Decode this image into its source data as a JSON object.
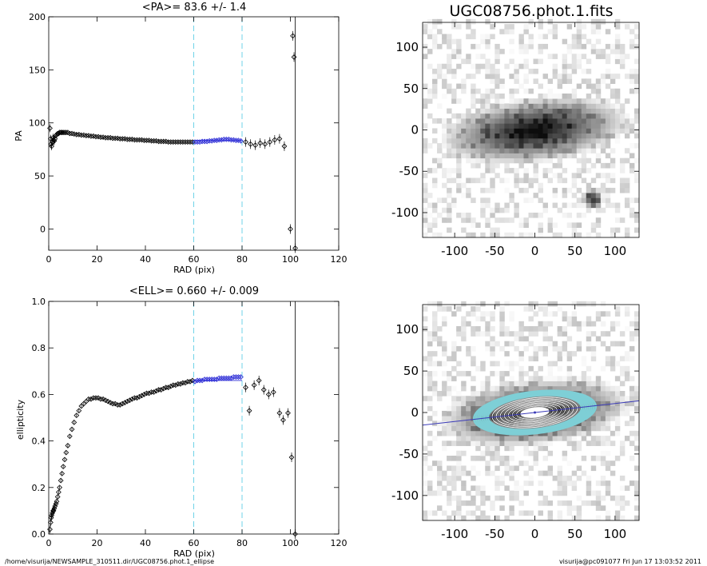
{
  "footer": {
    "path": "/home/visurija/NEWSAMPLE_310511.dir/UGC08756.phot.1_ellipse",
    "user_time": "visurija@pc091077  Fri Jun 17 13:03:52 2011"
  },
  "colors": {
    "data_marker": "#000000",
    "fit_range_marker": "#2b2bd6",
    "guide_lines": "#6fd3e8",
    "ellipse_outer": "#7ecfd6",
    "ellipse_inner": "#ffffff",
    "major_axis_line": "#3a3ab8"
  },
  "chart_data": [
    {
      "type": "scatter",
      "panel": "pa",
      "title": "<PA>=  83.6 +/-   1.4",
      "xlabel": "RAD (pix)",
      "ylabel": "PA",
      "xlim": [
        0,
        120
      ],
      "ylim": [
        -20,
        200
      ],
      "xticks": [
        "0",
        "20",
        "40",
        "60",
        "80",
        "100",
        "120"
      ],
      "yticks": [
        "0",
        "50",
        "100",
        "150",
        "200"
      ],
      "guide_lines_x": [
        60,
        80
      ],
      "vertical_line_x": 102,
      "fit_range": [
        60,
        80
      ],
      "fit_mean": 83.6,
      "series": [
        {
          "x": [
            0.5,
            0.8,
            1.0,
            1.2,
            1.5,
            1.8,
            2.0,
            2.3,
            2.6,
            3.0,
            3.3,
            3.7,
            4.1,
            4.5,
            5.0,
            5.5,
            6.0,
            6.6,
            7.2,
            7.9,
            8.7,
            9.6,
            10.5,
            11.5,
            12.5,
            13.5,
            14.5,
            15.5,
            16.5,
            17.5,
            18.5,
            19.5,
            20.5,
            21.5,
            22.5,
            23.5,
            24.5,
            25.5,
            26.5,
            27.5,
            28.5,
            29.5,
            30.5,
            31.5,
            32.5,
            33.5,
            34.5,
            35.5,
            36.5,
            37.5,
            38.5,
            39.5,
            40.5,
            41.5,
            42.5,
            43.5,
            44.5,
            45.5,
            46.5,
            47.5,
            48.5,
            49.5,
            50.5,
            51.5,
            52.5,
            53.5,
            54.5,
            55.5,
            56.5,
            57.5,
            58.5,
            59.5,
            60.5,
            61.5,
            62.5,
            63.5,
            64.5,
            65.5,
            66.5,
            67.5,
            68.5,
            69.5,
            70.5,
            71.5,
            72.5,
            73.5,
            74.5,
            75.5,
            76.5,
            77.5,
            78.5,
            79.5,
            81.5,
            83.5,
            85.5,
            87.5,
            89.5,
            91.5,
            93.5,
            95.5,
            97.5,
            100.0,
            101.0,
            101.5,
            102.0
          ],
          "y": [
            95,
            85,
            80,
            78,
            82,
            86,
            84,
            83,
            85,
            88,
            89,
            90,
            90,
            91,
            91,
            91,
            91,
            91,
            91,
            91,
            90,
            90,
            89.5,
            89,
            89,
            88.5,
            88.5,
            88,
            88,
            87.5,
            87.5,
            87,
            87,
            86.5,
            86.5,
            86,
            86,
            86,
            85.5,
            85.5,
            85.5,
            85,
            85,
            85,
            84.5,
            84.5,
            84.5,
            84,
            84,
            84,
            84,
            83.5,
            83.5,
            83.5,
            83,
            83,
            83,
            82.5,
            82.5,
            82.5,
            82.5,
            82,
            82,
            82,
            82,
            82,
            82,
            82,
            82,
            82,
            82,
            82,
            82,
            82,
            82,
            82.5,
            82.5,
            82.5,
            83,
            83,
            83.5,
            83.5,
            84,
            84,
            84.5,
            84.5,
            84.5,
            84,
            84,
            83.5,
            83.5,
            83,
            82,
            80,
            79,
            81,
            80,
            82,
            84,
            85,
            78,
            0,
            182,
            162,
            -18
          ],
          "yerr_notes": "larger scatter beyond 80 pix"
        }
      ]
    },
    {
      "type": "scatter",
      "panel": "ellipticity",
      "title": "<ELL>= 0.660 +/-  0.009",
      "xlabel": "RAD (pix)",
      "ylabel": "ellipticity",
      "xlim": [
        0,
        120
      ],
      "ylim": [
        0,
        1.0
      ],
      "xticks": [
        "0",
        "20",
        "40",
        "60",
        "80",
        "100",
        "120"
      ],
      "yticks": [
        "0.0",
        "0.2",
        "0.4",
        "0.6",
        "0.8",
        "1.0"
      ],
      "guide_lines_x": [
        60,
        80
      ],
      "vertical_line_x": 102,
      "fit_range": [
        60,
        80
      ],
      "fit_mean": 0.66,
      "series": [
        {
          "x": [
            0.5,
            0.8,
            1.0,
            1.2,
            1.5,
            1.8,
            2.0,
            2.3,
            2.6,
            3.0,
            3.3,
            3.7,
            4.1,
            4.5,
            5.0,
            5.5,
            6.0,
            6.6,
            7.2,
            7.9,
            8.7,
            9.6,
            10.5,
            11.5,
            12.5,
            13.5,
            14.5,
            15.5,
            16.5,
            17.5,
            18.5,
            19.5,
            20.5,
            21.5,
            22.5,
            23.5,
            24.5,
            25.5,
            26.5,
            27.5,
            28.5,
            29.5,
            30.5,
            31.5,
            32.5,
            33.5,
            34.5,
            35.5,
            36.5,
            37.5,
            38.5,
            39.5,
            40.5,
            41.5,
            42.5,
            43.5,
            44.5,
            45.5,
            46.5,
            47.5,
            48.5,
            49.5,
            50.5,
            51.5,
            52.5,
            53.5,
            54.5,
            55.5,
            56.5,
            57.5,
            58.5,
            59.5,
            60.5,
            61.5,
            62.5,
            63.5,
            64.5,
            65.5,
            66.5,
            67.5,
            68.5,
            69.5,
            70.5,
            71.5,
            72.5,
            73.5,
            74.5,
            75.5,
            76.5,
            77.5,
            78.5,
            79.5,
            81.5,
            83.0,
            85.0,
            87.0,
            89.0,
            91.0,
            93.0,
            95.5,
            97.0,
            99.0,
            100.5,
            102.0
          ],
          "y": [
            0.02,
            0.05,
            0.07,
            0.08,
            0.09,
            0.1,
            0.1,
            0.11,
            0.12,
            0.13,
            0.14,
            0.16,
            0.18,
            0.2,
            0.23,
            0.26,
            0.29,
            0.32,
            0.35,
            0.38,
            0.42,
            0.45,
            0.48,
            0.51,
            0.53,
            0.55,
            0.56,
            0.57,
            0.58,
            0.58,
            0.585,
            0.585,
            0.585,
            0.58,
            0.58,
            0.575,
            0.57,
            0.565,
            0.56,
            0.56,
            0.555,
            0.555,
            0.56,
            0.565,
            0.57,
            0.575,
            0.58,
            0.585,
            0.585,
            0.59,
            0.595,
            0.6,
            0.605,
            0.605,
            0.61,
            0.61,
            0.615,
            0.62,
            0.62,
            0.625,
            0.63,
            0.63,
            0.635,
            0.64,
            0.64,
            0.645,
            0.645,
            0.65,
            0.65,
            0.655,
            0.655,
            0.66,
            0.655,
            0.66,
            0.66,
            0.66,
            0.665,
            0.665,
            0.665,
            0.665,
            0.665,
            0.665,
            0.67,
            0.67,
            0.67,
            0.67,
            0.67,
            0.67,
            0.675,
            0.675,
            0.675,
            0.675,
            0.63,
            0.53,
            0.64,
            0.66,
            0.62,
            0.6,
            0.61,
            0.52,
            0.49,
            0.52,
            0.33,
            0.0
          ]
        }
      ]
    },
    {
      "type": "heatmap",
      "panel": "image",
      "title": "UGC08756.phot.1.fits",
      "xlim": [
        -140,
        130
      ],
      "ylim": [
        -130,
        130
      ],
      "xticks": [
        "-100",
        "-50",
        "0",
        "50",
        "100"
      ],
      "yticks": [
        "100",
        "50",
        "0",
        "-50",
        "-100"
      ],
      "galaxy_center": [
        0,
        0
      ],
      "star_position": [
        72,
        -83
      ]
    },
    {
      "type": "heatmap",
      "panel": "model",
      "title": "",
      "xlim": [
        -140,
        130
      ],
      "ylim": [
        -130,
        130
      ],
      "xticks": [
        "-100",
        "-50",
        "0",
        "50",
        "100"
      ],
      "yticks": [
        "100",
        "50",
        "0",
        "-50",
        "-100"
      ],
      "galaxy_center": [
        0,
        0
      ],
      "position_angle_deg": 83.6,
      "major_axis_line": true
    }
  ]
}
